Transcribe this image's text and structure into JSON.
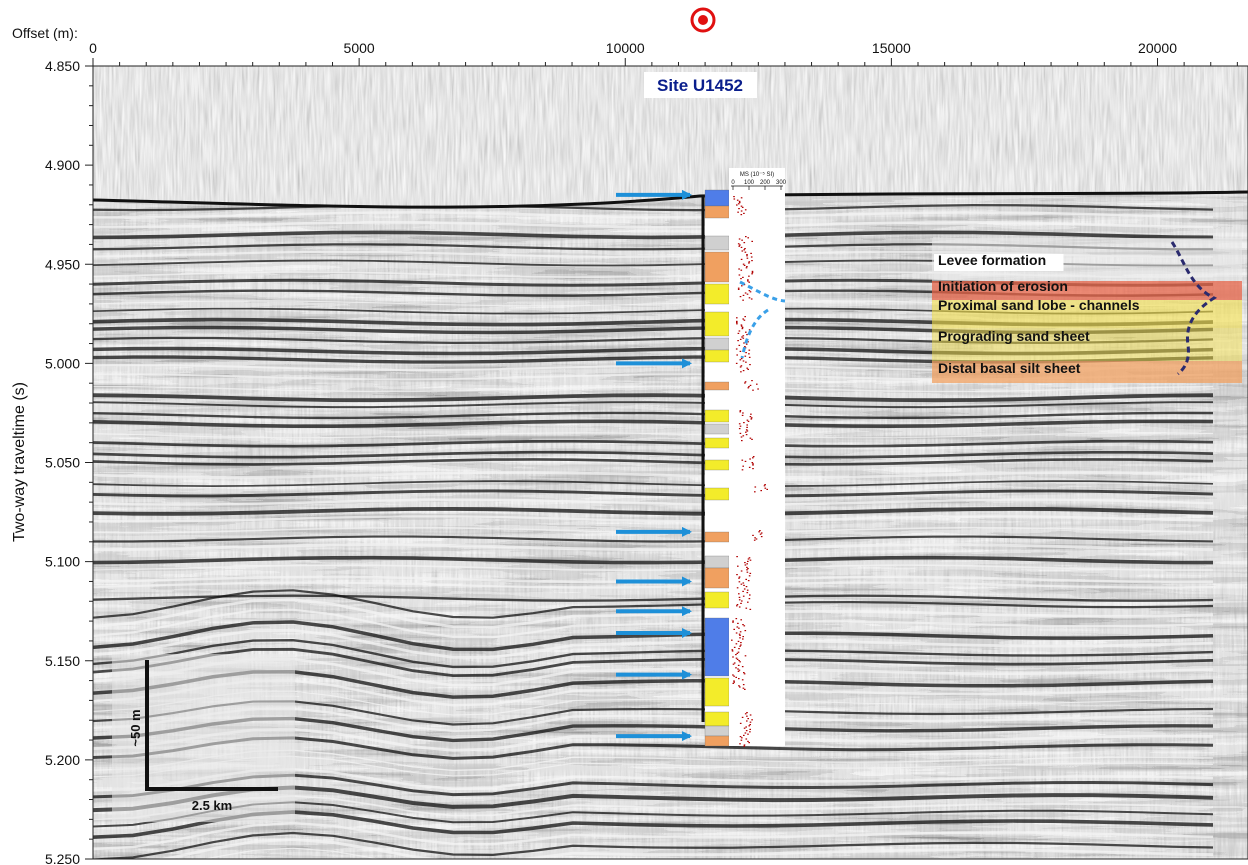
{
  "offset_axis": {
    "label": "Offset (m):",
    "ticks": [
      "0",
      "5000",
      "10000",
      "15000",
      "20000"
    ],
    "tick_values": [
      0,
      5000,
      10000,
      15000,
      20000
    ],
    "range": [
      0,
      21700
    ]
  },
  "time_axis": {
    "label": "Two-way traveltime (s)",
    "ticks": [
      "4.850",
      "4.900",
      "4.950",
      "5.000",
      "5.050",
      "5.100",
      "5.150",
      "5.200",
      "5.250"
    ],
    "tick_values": [
      4.85,
      4.9,
      4.95,
      5.0,
      5.05,
      5.1,
      5.15,
      5.2,
      5.25
    ],
    "range": [
      4.85,
      5.25
    ]
  },
  "site": {
    "label": "Site U1452",
    "marker": "red-target-icon",
    "offset_m": 11500
  },
  "ms_log": {
    "title": "MS (10⁻⁵ SI)",
    "ticks": [
      "0",
      "100",
      "200",
      "300"
    ]
  },
  "legend": [
    {
      "label": "Levee formation",
      "color": "#d9d9d9"
    },
    {
      "label": "Initiation of erosion",
      "color": "#e8654a"
    },
    {
      "label": "Proximal sand lobe - channels",
      "color": "#f3e04a"
    },
    {
      "label": "Prograding sand sheet",
      "color": "#f3e04a"
    },
    {
      "label": "Distal basal silt sheet",
      "color": "#f0a060"
    }
  ],
  "arrows_twt_s": [
    4.915,
    5.0,
    5.085,
    5.11,
    5.125,
    5.136,
    5.157,
    5.188
  ],
  "scale_bar": {
    "vertical_label": "~50 m",
    "horizontal_label": "2.5 km"
  },
  "colors": {
    "arrow": "#1e90d8",
    "site_label": "#0a1e8c",
    "target": "#e01010",
    "ms_points": "#b00000",
    "dashed_curve": "#2a2a6e"
  }
}
